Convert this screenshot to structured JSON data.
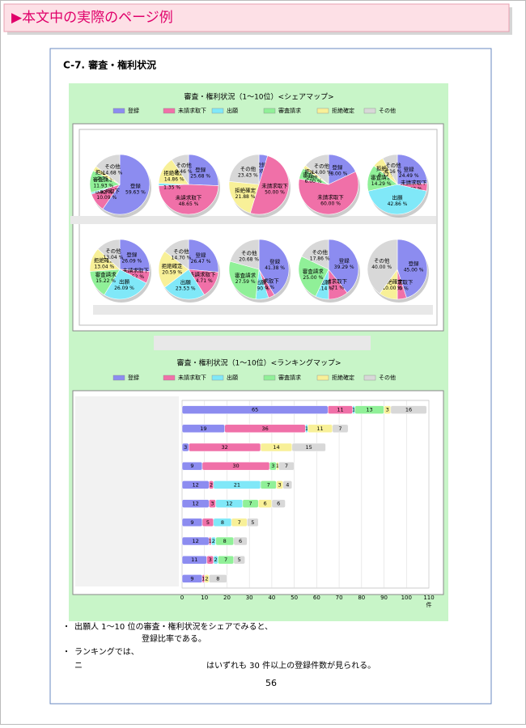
{
  "header": {
    "title": "▶本文中の実際のページ例"
  },
  "section_title": "C-7.  審査・権利状況",
  "chart_data": [
    {
      "type": "pie",
      "title": "審査・権利状況（1～10位）<シェアマップ>",
      "categories": [
        "登録",
        "未請求取下",
        "出願",
        "審査請求",
        "拒絶確定",
        "その他"
      ],
      "colors": [
        "#8c8cf0",
        "#f070a8",
        "#80e8f8",
        "#90f098",
        "#f8f098",
        "#d8d8d8"
      ],
      "pies": [
        {
          "values": [
            59.63,
            10.09,
            0.92,
            11.93,
            2.75,
            14.68
          ],
          "value_labels": [
            "59.63 %",
            "10.09 %",
            "0.92 %",
            "11.93 %",
            "2.75 %",
            "14.68 %"
          ]
        },
        {
          "values": [
            25.68,
            48.65,
            1.35,
            0,
            14.86,
            9.46
          ],
          "value_labels": [
            "25.68 %",
            "48.65 %",
            "1.35 %",
            null,
            "14.86 %",
            "9.46 %"
          ]
        },
        {
          "values": [
            4.69,
            50.0,
            0,
            0,
            21.88,
            23.43
          ],
          "value_labels": [
            "4.69 %",
            "50.00 %",
            null,
            null,
            "21.88 %",
            "23.43 %"
          ]
        },
        {
          "values": [
            18.0,
            60.0,
            0,
            6.0,
            2.0,
            14.0
          ],
          "value_labels": [
            "18.00 %",
            "60.00 %",
            null,
            "6.00 %",
            "2.00 %",
            "14.00 %"
          ]
        },
        {
          "values": [
            24.49,
            4.08,
            42.86,
            14.29,
            6.12,
            8.16
          ],
          "value_labels": [
            "24.49 %",
            "4.08 %",
            "42.86 %",
            "14.29 %",
            "6.12 %",
            "8.16 %"
          ]
        },
        {
          "values": [
            26.09,
            6.52,
            26.09,
            15.22,
            13.04,
            13.04
          ],
          "value_labels": [
            "26.09 %",
            "6.52 %",
            "26.09 %",
            "15.22 %",
            "13.04 %",
            "13.04 %"
          ]
        },
        {
          "values": [
            26.47,
            14.71,
            23.53,
            0,
            20.59,
            14.7
          ],
          "value_labels": [
            "26.47 %",
            "14.71 %",
            "23.53 %",
            null,
            "20.59 %",
            "14.70 %"
          ]
        },
        {
          "values": [
            41.38,
            3.45,
            6.9,
            27.59,
            0,
            20.68
          ],
          "value_labels": [
            "41.38 %",
            "3.45 %",
            "6.90 %",
            "27.59 %",
            null,
            "20.68 %"
          ]
        },
        {
          "values": [
            39.29,
            10.71,
            7.14,
            25.0,
            0,
            17.86
          ],
          "value_labels": [
            "39.29 %",
            "10.71 %",
            "7.14 %",
            "25.00 %",
            null,
            "17.86 %"
          ]
        },
        {
          "values": [
            45.0,
            5.0,
            0,
            0,
            10.0,
            40.0
          ],
          "value_labels": [
            "45.00 %",
            "5.00 %",
            null,
            null,
            "10.00 %",
            "40.00 %"
          ]
        }
      ]
    },
    {
      "type": "bar",
      "orientation": "horizontal",
      "stacked": true,
      "title": "審査・権利状況（1～10位）<ランキングマップ>",
      "series": [
        {
          "name": "登録",
          "color": "#8c8cf0",
          "values": [
            65,
            19,
            3,
            9,
            12,
            12,
            9,
            12,
            11,
            9
          ]
        },
        {
          "name": "未請求取下",
          "color": "#f070a8",
          "values": [
            11,
            36,
            32,
            30,
            2,
            3,
            5,
            1,
            3,
            1
          ]
        },
        {
          "name": "出願",
          "color": "#80e8f8",
          "values": [
            1,
            1,
            0,
            0,
            21,
            12,
            8,
            2,
            2,
            0
          ]
        },
        {
          "name": "審査請求",
          "color": "#90f098",
          "values": [
            13,
            0,
            0,
            3,
            7,
            7,
            0,
            8,
            7,
            0
          ]
        },
        {
          "name": "拒絶確定",
          "color": "#f8f098",
          "values": [
            3,
            11,
            14,
            1,
            3,
            6,
            7,
            0,
            0,
            2
          ]
        },
        {
          "name": "その他",
          "color": "#d8d8d8",
          "values": [
            16,
            7,
            15,
            7,
            4,
            6,
            5,
            6,
            5,
            8
          ]
        }
      ],
      "xlim": [
        0,
        110
      ],
      "xticks": [
        0,
        10,
        20,
        30,
        40,
        50,
        60,
        70,
        80,
        90,
        100,
        110
      ],
      "x_unit": "件",
      "grid": true
    }
  ],
  "notes": [
    {
      "bullet": "・",
      "lines": [
        "出願人 1～10 位の審査・権利状況をシェアでみると、",
        "登録比率である。"
      ]
    },
    {
      "bullet": "・",
      "lines": [
        "ランキングでは、",
        "ニ",
        "はいずれも 30 件以上の登録件数が見られる。"
      ]
    }
  ],
  "page_number": "56"
}
